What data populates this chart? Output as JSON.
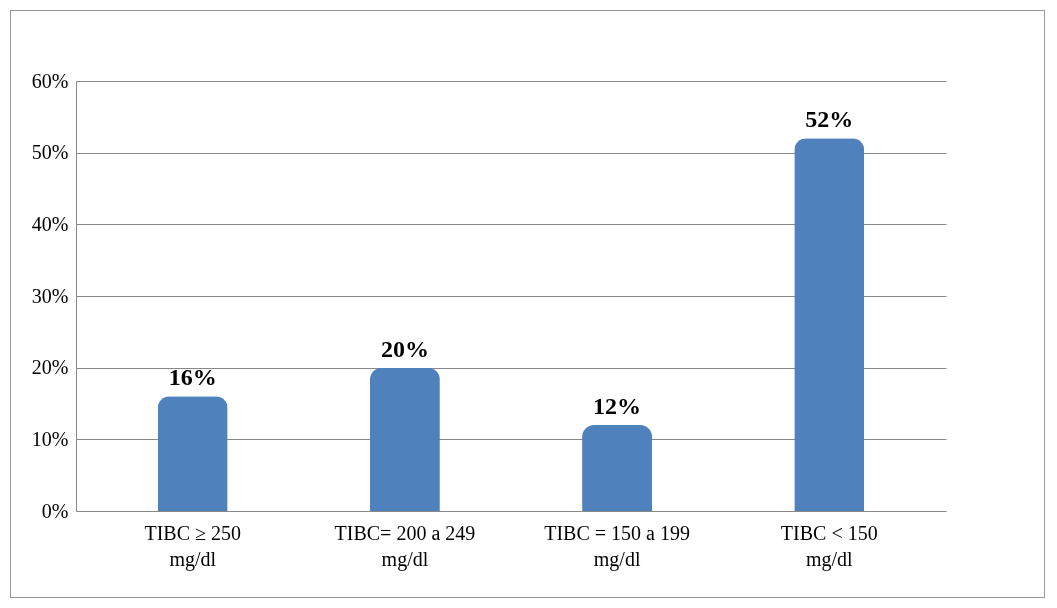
{
  "chart_data": {
    "type": "bar",
    "categories": [
      "TIBC ≥ 250 mg/dl",
      "TIBC= 200 a 249 mg/dl",
      "TIBC = 150 a 199 mg/dl",
      "TIBC < 150 mg/dl"
    ],
    "values": [
      16,
      20,
      12,
      52
    ],
    "value_labels": [
      "16%",
      "20%",
      "12%",
      "52%"
    ],
    "color": "#4f81bd",
    "ylim": [
      0,
      60
    ],
    "yticks": [
      {
        "value": 0,
        "label": "0%"
      },
      {
        "value": 10,
        "label": "10%"
      },
      {
        "value": 20,
        "label": "20%"
      },
      {
        "value": 30,
        "label": "30%"
      },
      {
        "value": 40,
        "label": "40%"
      },
      {
        "value": 50,
        "label": "50%"
      },
      {
        "value": 60,
        "label": "60%"
      }
    ],
    "grid": true
  }
}
